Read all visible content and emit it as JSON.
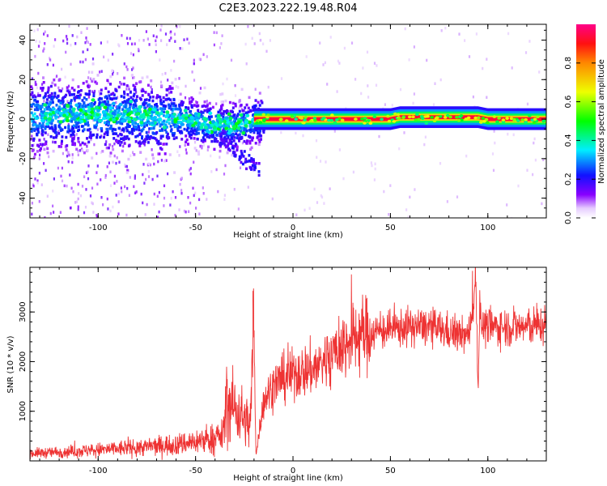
{
  "title": "C2E3.2023.222.19.48.R04",
  "chart_data": [
    {
      "type": "heatmap",
      "xlabel": "Height of straight line (km)",
      "ylabel": "Frequency (Hz)",
      "xlim": [
        -135,
        130
      ],
      "ylim": [
        -50,
        48
      ],
      "xticks": [
        -100,
        -50,
        0,
        50,
        100
      ],
      "xtick_labels": [
        "-100",
        "-50",
        "0",
        "50",
        "100"
      ],
      "yticks": [
        -40,
        -20,
        0,
        20,
        40
      ],
      "ytick_labels": [
        "-40",
        "-20",
        "0",
        "20",
        "40"
      ],
      "colorbar": {
        "label": "Normalized spectral amplitude",
        "range": [
          0,
          1
        ],
        "ticks": [
          0.0,
          0.2,
          0.4,
          0.6,
          0.8
        ],
        "tick_labels": [
          "0.0",
          "0.2",
          "0.4",
          "0.6",
          "0.8"
        ],
        "colormap": "rainbow (white-violet-blue-cyan-green-yellow-orange-red-magenta)"
      },
      "ridge": {
        "x": [
          -135,
          -120,
          -100,
          -80,
          -60,
          -45,
          -35,
          -25,
          -20,
          -19,
          0,
          30,
          50,
          55,
          75,
          95,
          100,
          110,
          130
        ],
        "y": [
          2,
          3,
          3,
          2,
          1,
          -2,
          -3,
          -2,
          0,
          0,
          0,
          0,
          0,
          1,
          1,
          1,
          0,
          0,
          0
        ],
        "peak_amplitude": [
          0.35,
          0.35,
          0.45,
          0.4,
          0.4,
          0.45,
          0.45,
          0.5,
          0.95,
          0.95,
          0.95,
          0.95,
          0.95,
          0.9,
          0.9,
          0.9,
          0.95,
          0.95,
          0.95
        ]
      },
      "grid": false,
      "legend": "none"
    },
    {
      "type": "line",
      "xlabel": "Height of straight line (km)",
      "ylabel": "SNR (10 * v/v)",
      "xlim": [
        -135,
        130
      ],
      "ylim": [
        0,
        3900
      ],
      "xticks": [
        -100,
        -50,
        0,
        50,
        100
      ],
      "xtick_labels": [
        "-100",
        "-50",
        "0",
        "50",
        "100"
      ],
      "yticks": [
        1000,
        2000,
        3000
      ],
      "ytick_labels": [
        "1000",
        "2000",
        "3000"
      ],
      "color": "#ee3333",
      "series": [
        {
          "envelope_x": [
            -135,
            -120,
            -100,
            -80,
            -60,
            -45,
            -36,
            -34,
            -28,
            -22,
            -20,
            -19,
            -17,
            -15,
            -10,
            0,
            10,
            20,
            30,
            35,
            50,
            60,
            70,
            80,
            85,
            90,
            94,
            95,
            96,
            97,
            98,
            100,
            110,
            120,
            130
          ],
          "envelope_y": [
            150,
            180,
            220,
            270,
            330,
            420,
            500,
            1200,
            1000,
            700,
            2800,
            100,
            700,
            1200,
            1550,
            1750,
            1850,
            2150,
            2450,
            2550,
            2650,
            2700,
            2700,
            2600,
            2550,
            2500,
            3600,
            1400,
            3400,
            2600,
            2700,
            2700,
            2700,
            2700,
            2750
          ]
        }
      ],
      "grid": false,
      "legend": "none"
    }
  ]
}
